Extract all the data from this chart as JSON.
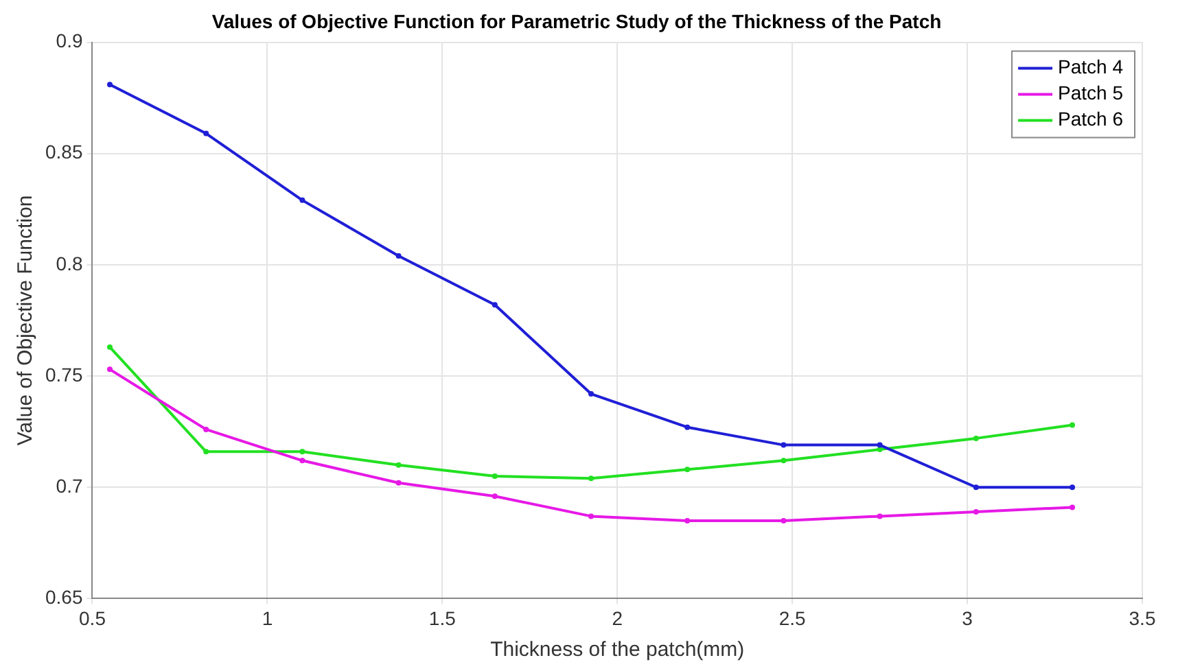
{
  "chart_data": {
    "type": "line",
    "title": "Values of Objective Function for Parametric Study of the Thickness of the Patch",
    "xlabel": "Thickness of the patch(mm)",
    "ylabel": "Value of Objective Function",
    "x": [
      0.55,
      0.825,
      1.1,
      1.375,
      1.65,
      1.925,
      2.2,
      2.475,
      2.75,
      3.025,
      3.3
    ],
    "series": [
      {
        "name": "Patch 4",
        "color": "#1f1fd6",
        "values": [
          0.881,
          0.859,
          0.829,
          0.804,
          0.782,
          0.742,
          0.727,
          0.719,
          0.719,
          0.7,
          0.7
        ]
      },
      {
        "name": "Patch 5",
        "color": "#e619e6",
        "values": [
          0.753,
          0.726,
          0.712,
          0.702,
          0.696,
          0.687,
          0.685,
          0.685,
          0.687,
          0.689,
          0.691
        ]
      },
      {
        "name": "Patch 6",
        "color": "#22e022",
        "values": [
          0.763,
          0.716,
          0.716,
          0.71,
          0.705,
          0.704,
          0.708,
          0.712,
          0.717,
          0.722,
          0.728
        ]
      }
    ],
    "xlim": [
      0.5,
      3.5
    ],
    "xticks": [
      0.5,
      1,
      1.5,
      2,
      2.5,
      3,
      3.5
    ],
    "ylim": [
      0.65,
      0.9
    ],
    "yticks": [
      0.65,
      0.7,
      0.75,
      0.8,
      0.85,
      0.9
    ],
    "grid": true,
    "legend": "top right",
    "marker": "circle",
    "line_style": "solid"
  }
}
